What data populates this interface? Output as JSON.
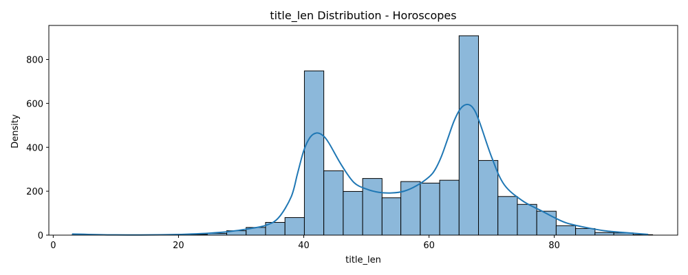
{
  "chart_data": {
    "type": "bar",
    "title": "title_len Distribution - Horoscopes",
    "xlabel": "title_len",
    "ylabel": "Density",
    "xlim": [
      -0.7,
      99.7
    ],
    "ylim": [
      0,
      955
    ],
    "xticks": [
      0,
      20,
      40,
      60,
      80
    ],
    "yticks": [
      0,
      200,
      400,
      600,
      800
    ],
    "bins": [
      {
        "x0": 3.0,
        "x1": 6.1,
        "value": 1
      },
      {
        "x0": 6.1,
        "x1": 9.2,
        "value": 0
      },
      {
        "x0": 9.2,
        "x1": 12.3,
        "value": 0
      },
      {
        "x0": 12.3,
        "x1": 15.4,
        "value": 0
      },
      {
        "x0": 15.4,
        "x1": 18.5,
        "value": 0
      },
      {
        "x0": 18.5,
        "x1": 21.6,
        "value": 1
      },
      {
        "x0": 21.6,
        "x1": 24.6,
        "value": 3
      },
      {
        "x0": 24.6,
        "x1": 27.7,
        "value": 8
      },
      {
        "x0": 27.7,
        "x1": 30.8,
        "value": 20
      },
      {
        "x0": 30.8,
        "x1": 33.9,
        "value": 35
      },
      {
        "x0": 33.9,
        "x1": 37.0,
        "value": 58
      },
      {
        "x0": 37.0,
        "x1": 40.1,
        "value": 80
      },
      {
        "x0": 40.1,
        "x1": 43.2,
        "value": 748
      },
      {
        "x0": 43.2,
        "x1": 46.3,
        "value": 293
      },
      {
        "x0": 46.3,
        "x1": 49.4,
        "value": 199
      },
      {
        "x0": 49.4,
        "x1": 52.5,
        "value": 258
      },
      {
        "x0": 52.5,
        "x1": 55.5,
        "value": 170
      },
      {
        "x0": 55.5,
        "x1": 58.6,
        "value": 244
      },
      {
        "x0": 58.6,
        "x1": 61.7,
        "value": 237
      },
      {
        "x0": 61.7,
        "x1": 64.8,
        "value": 250
      },
      {
        "x0": 64.8,
        "x1": 67.9,
        "value": 908
      },
      {
        "x0": 67.9,
        "x1": 71.0,
        "value": 340
      },
      {
        "x0": 71.0,
        "x1": 74.1,
        "value": 176
      },
      {
        "x0": 74.1,
        "x1": 77.2,
        "value": 140
      },
      {
        "x0": 77.2,
        "x1": 80.3,
        "value": 109
      },
      {
        "x0": 80.3,
        "x1": 83.4,
        "value": 43
      },
      {
        "x0": 83.4,
        "x1": 86.5,
        "value": 30
      },
      {
        "x0": 86.5,
        "x1": 89.5,
        "value": 12
      },
      {
        "x0": 89.5,
        "x1": 92.6,
        "value": 10
      },
      {
        "x0": 92.6,
        "x1": 95.7,
        "value": 2
      }
    ],
    "kde": {
      "x": [
        3,
        10,
        18,
        22,
        25,
        28,
        31,
        34,
        36,
        38,
        39,
        40,
        41,
        42,
        43,
        44,
        46,
        48,
        50,
        52,
        54,
        56,
        58,
        60,
        61,
        62,
        63,
        64,
        65,
        66,
        67,
        68,
        70,
        72,
        75,
        78,
        80,
        82,
        85,
        88,
        91,
        95
      ],
      "y": [
        5,
        1,
        2,
        5,
        9,
        16,
        28,
        45,
        80,
        175,
        280,
        385,
        445,
        465,
        455,
        420,
        320,
        240,
        210,
        195,
        192,
        200,
        225,
        265,
        300,
        360,
        440,
        520,
        575,
        595,
        580,
        520,
        355,
        230,
        155,
        110,
        80,
        55,
        35,
        20,
        12,
        3
      ]
    },
    "bar_color": "#8cb8da",
    "bar_edge_color": "#000000",
    "line_color": "#1f77b4",
    "grid": false,
    "legend": "none"
  }
}
